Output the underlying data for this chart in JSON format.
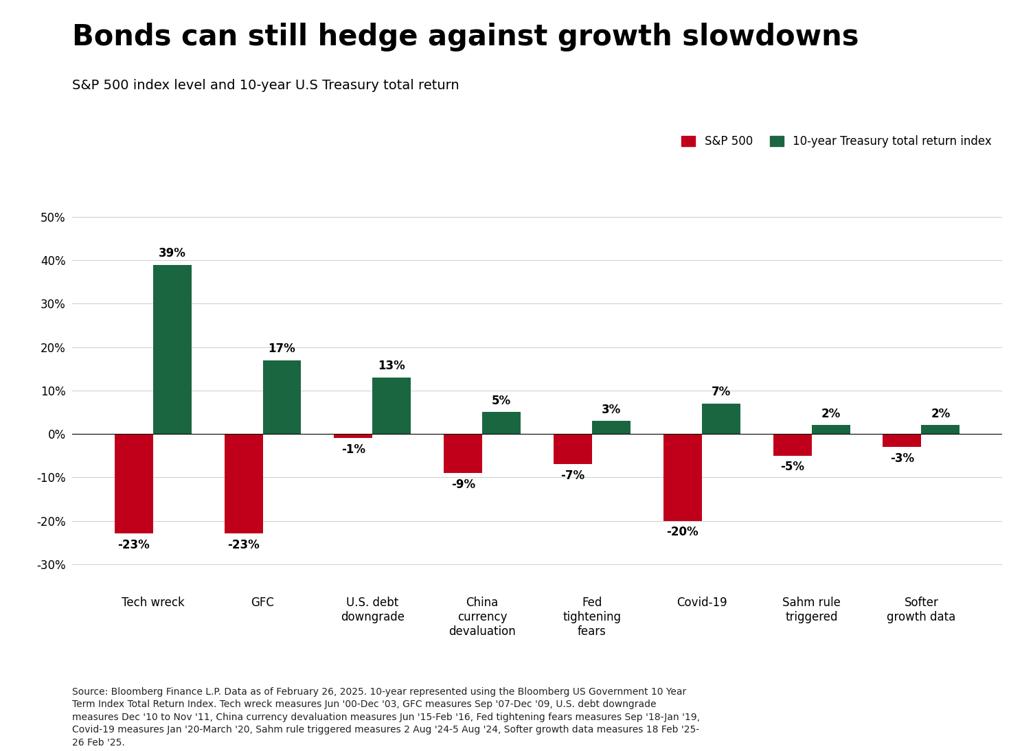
{
  "title": "Bonds can still hedge against growth slowdowns",
  "subtitle": "S&P 500 index level and 10-year U.S Treasury total return",
  "categories": [
    "Tech wreck",
    "GFC",
    "U.S. debt\ndowngrade",
    "China\ncurrency\ndevaluation",
    "Fed\ntightening\nfears",
    "Covid-19",
    "Sahm rule\ntriggered",
    "Softer\ngrowth data"
  ],
  "sp500": [
    -23,
    -23,
    -1,
    -9,
    -7,
    -20,
    -5,
    -3
  ],
  "treasury": [
    39,
    17,
    13,
    5,
    3,
    7,
    2,
    2
  ],
  "sp500_color": "#c0001a",
  "treasury_color": "#1a6641",
  "bar_width": 0.35,
  "ylim": [
    -35,
    55
  ],
  "yticks": [
    -30,
    -20,
    -10,
    0,
    10,
    20,
    30,
    40,
    50
  ],
  "legend_sp500": "S&P 500",
  "legend_treasury": "10-year Treasury total return index",
  "source_text": "Source: Bloomberg Finance L.P. Data as of February 26, 2025. 10-year represented using the Bloomberg US Government 10 Year\nTerm Index Total Return Index. Tech wreck measures Jun '00-Dec '03, GFC measures Sep '07-Dec '09, U.S. debt downgrade\nmeasures Dec '10 to Nov '11, China currency devaluation measures Jun '15-Feb '16, Fed tightening fears measures Sep '18-Jan '19,\nCovid-19 measures Jan '20-March '20, Sahm rule triggered measures 2 Aug '24-5 Aug '24, Softer growth data measures 18 Feb '25-\n26 Feb '25.",
  "background_color": "#ffffff",
  "title_fontsize": 30,
  "subtitle_fontsize": 14,
  "label_fontsize": 12,
  "tick_fontsize": 12,
  "source_fontsize": 10
}
